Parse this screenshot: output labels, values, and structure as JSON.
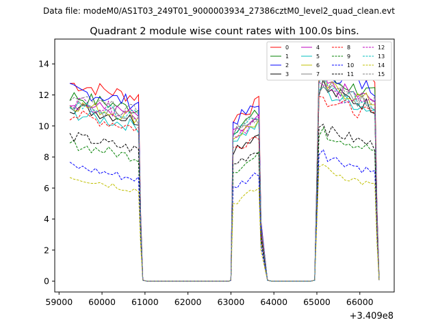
{
  "chart_data": {
    "type": "line",
    "suptitle": "Data file: modeM0/AS1T03_249T01_9000003934_27386cztM0_level2_quad_clean.evt",
    "title": "Quadrant 2 module wise count rates with 100.0s bins.",
    "xlabel": "",
    "ylabel": "",
    "offset_label": "+3.409e8",
    "xlim": [
      58900,
      66800
    ],
    "ylim": [
      -0.7,
      15.6
    ],
    "xticks": [
      59000,
      60000,
      61000,
      62000,
      63000,
      64000,
      65000,
      66000
    ],
    "yticks": [
      0,
      2,
      4,
      6,
      8,
      10,
      12,
      14
    ],
    "legend_position": "top-right",
    "segments": [
      {
        "start": 59250,
        "end": 60850,
        "rampdown_to": 60950
      },
      {
        "start": 63050,
        "end": 63650,
        "rampup_from": 63000,
        "rampdown_to": 63850
      },
      {
        "start": 65050,
        "end": 66350,
        "rampup_from": 64950,
        "rampdown_to": 66450
      }
    ],
    "gaps": [
      [
        60950,
        63000
      ],
      [
        63850,
        64950
      ]
    ],
    "series": [
      {
        "name": "0",
        "color": "#ff0000",
        "dash": "solid",
        "levels": [
          12.3,
          11.0,
          13.6
        ]
      },
      {
        "name": "1",
        "color": "#008000",
        "dash": "solid",
        "levels": [
          11.5,
          10.3,
          12.6
        ]
      },
      {
        "name": "2",
        "color": "#0000ff",
        "dash": "solid",
        "levels": [
          11.9,
          10.8,
          13.0
        ]
      },
      {
        "name": "3",
        "color": "#000000",
        "dash": "solid",
        "levels": [
          10.8,
          9.0,
          11.8
        ]
      },
      {
        "name": "4",
        "color": "#bf00bf",
        "dash": "solid",
        "levels": [
          11.1,
          9.9,
          12.2
        ]
      },
      {
        "name": "5",
        "color": "#00bfbf",
        "dash": "solid",
        "levels": [
          10.4,
          9.6,
          11.6
        ]
      },
      {
        "name": "6",
        "color": "#bfbf00",
        "dash": "solid",
        "levels": [
          11.0,
          9.8,
          12.1
        ]
      },
      {
        "name": "7",
        "color": "#808080",
        "dash": "solid",
        "levels": [
          10.9,
          10.0,
          11.9
        ]
      },
      {
        "name": "8",
        "color": "#ff0000",
        "dash": "dashed",
        "levels": [
          10.3,
          9.0,
          11.2
        ]
      },
      {
        "name": "9",
        "color": "#008000",
        "dash": "dashed",
        "levels": [
          8.4,
          7.6,
          9.0
        ]
      },
      {
        "name": "10",
        "color": "#0000ff",
        "dash": "dashed",
        "levels": [
          7.0,
          6.5,
          7.6
        ]
      },
      {
        "name": "11",
        "color": "#000000",
        "dash": "dashed",
        "levels": [
          8.9,
          8.0,
          9.3
        ]
      },
      {
        "name": "12",
        "color": "#bf00bf",
        "dash": "dashed",
        "levels": [
          11.2,
          9.9,
          11.8
        ]
      },
      {
        "name": "13",
        "color": "#00bfbf",
        "dash": "dashed",
        "levels": [
          11.0,
          10.1,
          11.9
        ]
      },
      {
        "name": "14",
        "color": "#bfbf00",
        "dash": "dashed",
        "levels": [
          6.3,
          5.5,
          6.7
        ]
      },
      {
        "name": "15",
        "color": "#808080",
        "dash": "dashed",
        "levels": [
          11.3,
          10.2,
          12.2
        ]
      }
    ]
  }
}
